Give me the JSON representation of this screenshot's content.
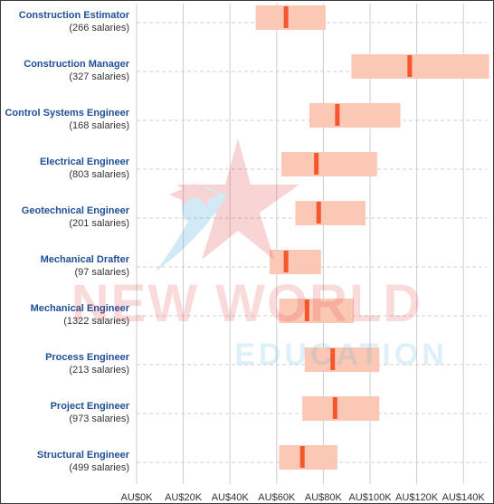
{
  "watermark": {
    "line1": "NEW WORLD",
    "line2": "EDUCATION",
    "icon": "graduation-cap-star-logo"
  },
  "colors": {
    "range_fill": "#fcc8b6",
    "median_marker": "#f4562d",
    "title_text": "#1f4f96",
    "grid": "#cccccc",
    "row_dash": "#cfcfcf"
  },
  "chart_data": {
    "type": "range-bar",
    "title": "",
    "xlabel": "",
    "ylabel": "",
    "xlim": [
      0,
      150000
    ],
    "x_ticks": [
      0,
      20000,
      40000,
      60000,
      80000,
      100000,
      120000,
      140000
    ],
    "x_tick_labels": [
      "AU$0K",
      "AU$20K",
      "AU$40K",
      "AU$60K",
      "AU$80K",
      "AU$100K",
      "AU$120K",
      "AU$140K"
    ],
    "grid": true,
    "legend": "none",
    "rows": [
      {
        "title": "Construction Estimator",
        "count_label": "(266 salaries)",
        "low": 51000,
        "high": 81000,
        "median": 64000
      },
      {
        "title": "Construction Manager",
        "count_label": "(327 salaries)",
        "low": 92000,
        "high": 151000,
        "median": 117000
      },
      {
        "title": "Control Systems Engineer",
        "count_label": "(168 salaries)",
        "low": 74000,
        "high": 113000,
        "median": 86000
      },
      {
        "title": "Electrical Engineer",
        "count_label": "(803 salaries)",
        "low": 62000,
        "high": 103000,
        "median": 77000
      },
      {
        "title": "Geotechnical Engineer",
        "count_label": "(201 salaries)",
        "low": 68000,
        "high": 98000,
        "median": 78000
      },
      {
        "title": "Mechanical Drafter",
        "count_label": "(97 salaries)",
        "low": 57000,
        "high": 79000,
        "median": 64000
      },
      {
        "title": "Mechanical Engineer",
        "count_label": "(1322 salaries)",
        "low": 61000,
        "high": 93000,
        "median": 73000
      },
      {
        "title": "Process Engineer",
        "count_label": "(213 salaries)",
        "low": 72000,
        "high": 104000,
        "median": 84000
      },
      {
        "title": "Project Engineer",
        "count_label": "(973 salaries)",
        "low": 71000,
        "high": 104000,
        "median": 85000
      },
      {
        "title": "Structural Engineer",
        "count_label": "(499 salaries)",
        "low": 61000,
        "high": 86000,
        "median": 71000
      }
    ]
  }
}
